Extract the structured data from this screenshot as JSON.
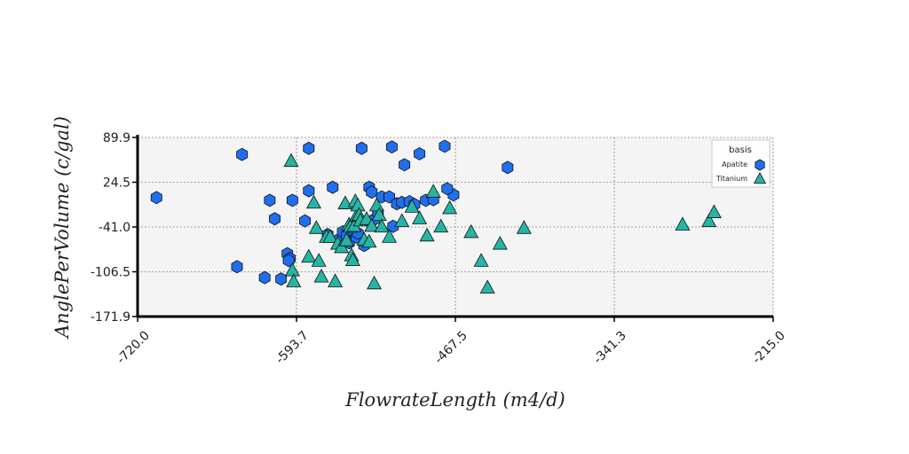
{
  "chart_data": {
    "type": "scatter",
    "xlabel": "FlowrateLength (m4/d)",
    "ylabel": "AnglePerVolume (c/gal)",
    "xlim": [
      -720.0,
      -215.0
    ],
    "ylim": [
      -171.9,
      89.9
    ],
    "x_ticks": [
      "-720.0",
      "-593.7",
      "-467.5",
      "-341.3",
      "-215.0"
    ],
    "y_ticks": [
      "89.9",
      "24.5",
      "-41.0",
      "-106.5",
      "-171.9"
    ],
    "grid": true,
    "legend": {
      "title": "basis",
      "position": "top-right"
    },
    "series": [
      {
        "name": "Apatite",
        "marker": "hexagon",
        "color": "#1f6fef",
        "points": [
          [
            -705,
            2
          ],
          [
            -641,
            -99
          ],
          [
            -637,
            65
          ],
          [
            -619,
            -115
          ],
          [
            -615,
            -2
          ],
          [
            -611,
            -29
          ],
          [
            -606,
            -117
          ],
          [
            -601,
            -80
          ],
          [
            -599,
            -87
          ],
          [
            -600,
            -90
          ],
          [
            -597,
            -2
          ],
          [
            -587,
            -32
          ],
          [
            -584,
            12
          ],
          [
            -584,
            74
          ],
          [
            -569,
            -52
          ],
          [
            -565,
            17
          ],
          [
            -560,
            -59
          ],
          [
            -557,
            -48
          ],
          [
            -554,
            -53
          ],
          [
            -552,
            -64
          ],
          [
            -548,
            -48
          ],
          [
            -546,
            -56
          ],
          [
            -545,
            -50
          ],
          [
            -542,
            74
          ],
          [
            -540,
            -68
          ],
          [
            -536,
            17
          ],
          [
            -534,
            10
          ],
          [
            -532,
            -30
          ],
          [
            -529,
            -20
          ],
          [
            -526,
            3
          ],
          [
            -520,
            3
          ],
          [
            -518,
            76
          ],
          [
            -517,
            -40
          ],
          [
            -514,
            -7
          ],
          [
            -510,
            -5
          ],
          [
            -508,
            50
          ],
          [
            -504,
            -4
          ],
          [
            -500,
            -8
          ],
          [
            -496,
            66
          ],
          [
            -491,
            -2
          ],
          [
            -485,
            -1
          ],
          [
            -476,
            77
          ],
          [
            -469,
            6
          ],
          [
            -474,
            15
          ],
          [
            -426,
            46
          ]
        ]
      },
      {
        "name": "Titanium",
        "marker": "triangle",
        "color": "#26b5a5",
        "points": [
          [
            -598,
            55
          ],
          [
            -597,
            -105
          ],
          [
            -596,
            -121
          ],
          [
            -584,
            -85
          ],
          [
            -580,
            -6
          ],
          [
            -578,
            -43
          ],
          [
            -576,
            -91
          ],
          [
            -574,
            -114
          ],
          [
            -570,
            -56
          ],
          [
            -567,
            -56
          ],
          [
            -563,
            -121
          ],
          [
            -561,
            -66
          ],
          [
            -558,
            -71
          ],
          [
            -555,
            -7
          ],
          [
            -554,
            -61
          ],
          [
            -552,
            -38
          ],
          [
            -551,
            -41
          ],
          [
            -550,
            -83
          ],
          [
            -549,
            -90
          ],
          [
            -548,
            -40
          ],
          [
            -547,
            -4
          ],
          [
            -546,
            -25
          ],
          [
            -545,
            -10
          ],
          [
            -544,
            -24
          ],
          [
            -543,
            -32
          ],
          [
            -540,
            -60
          ],
          [
            -538,
            -30
          ],
          [
            -536,
            -63
          ],
          [
            -534,
            -40
          ],
          [
            -532,
            -124
          ],
          [
            -530,
            -10
          ],
          [
            -528,
            -24
          ],
          [
            -526,
            -41
          ],
          [
            -520,
            -56
          ],
          [
            -510,
            -33
          ],
          [
            -502,
            -12
          ],
          [
            -496,
            -29
          ],
          [
            -490,
            -54
          ],
          [
            -485,
            10
          ],
          [
            -479,
            -41
          ],
          [
            -472,
            -14
          ],
          [
            -455,
            -49
          ],
          [
            -447,
            -91
          ],
          [
            -442,
            -130
          ],
          [
            -432,
            -66
          ],
          [
            -413,
            -43
          ],
          [
            -287,
            -38
          ],
          [
            -266,
            -33
          ],
          [
            -262,
            -20
          ]
        ]
      }
    ]
  }
}
